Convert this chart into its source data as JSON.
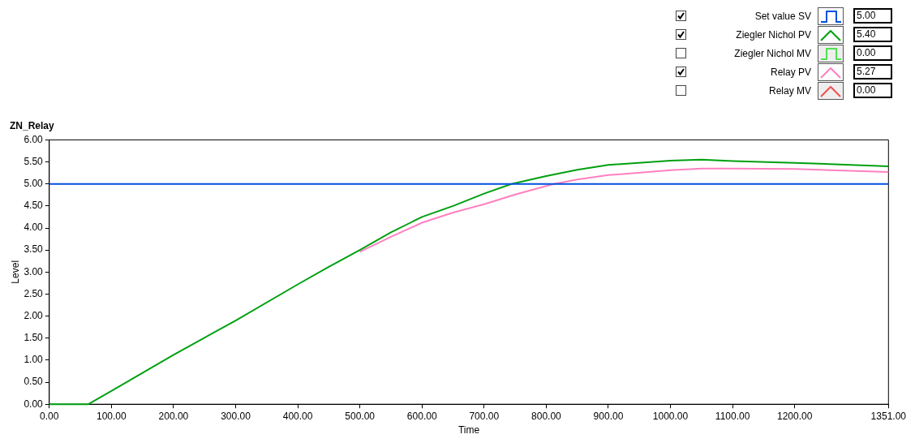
{
  "chart_data": {
    "type": "line",
    "title": "ZN_Relay",
    "xlabel": "Time",
    "ylabel": "Level",
    "legend": "top right",
    "grid": false,
    "marker": "none",
    "line_style": "solid",
    "xlim": [
      0,
      1351
    ],
    "ylim": [
      0,
      6
    ],
    "xticks": [
      {
        "value": 0,
        "label": "0.00"
      },
      {
        "value": 100,
        "label": "100.00"
      },
      {
        "value": 200,
        "label": "200.00"
      },
      {
        "value": 300,
        "label": "300.00"
      },
      {
        "value": 400,
        "label": "400.00"
      },
      {
        "value": 500,
        "label": "500.00"
      },
      {
        "value": 600,
        "label": "600.00"
      },
      {
        "value": 700,
        "label": "700.00"
      },
      {
        "value": 800,
        "label": "800.00"
      },
      {
        "value": 900,
        "label": "900.00"
      },
      {
        "value": 1000,
        "label": "1000.00"
      },
      {
        "value": 1100,
        "label": "1100.00"
      },
      {
        "value": 1200,
        "label": "1200.00"
      },
      {
        "value": 1351,
        "label": "1351.00"
      }
    ],
    "yticks": [
      {
        "value": 0,
        "label": "0.00"
      },
      {
        "value": 0.5,
        "label": "0.50"
      },
      {
        "value": 1,
        "label": "1.00"
      },
      {
        "value": 1.5,
        "label": "1.50"
      },
      {
        "value": 2,
        "label": "2.00"
      },
      {
        "value": 2.5,
        "label": "2.50"
      },
      {
        "value": 3,
        "label": "3.00"
      },
      {
        "value": 3.5,
        "label": "3.50"
      },
      {
        "value": 4,
        "label": "4.00"
      },
      {
        "value": 4.5,
        "label": "4.50"
      },
      {
        "value": 5,
        "label": "5.00"
      },
      {
        "value": 5.5,
        "label": "5.50"
      },
      {
        "value": 6,
        "label": "6.00"
      }
    ],
    "series": [
      {
        "name": "Set value SV",
        "type": "step",
        "color": "#0050e0",
        "x": [
          0,
          1351
        ],
        "values": [
          5,
          5
        ]
      },
      {
        "name": "Ziegler Nichol PV",
        "type": "line",
        "color": "#00a010",
        "x": [
          0,
          63,
          100,
          200,
          300,
          400,
          450,
          500,
          550,
          600,
          650,
          700,
          744,
          800,
          850,
          900,
          1000,
          1050,
          1100,
          1200,
          1351
        ],
        "values": [
          0,
          0,
          0.3,
          1.12,
          1.9,
          2.72,
          3.12,
          3.5,
          3.9,
          4.25,
          4.5,
          4.78,
          5,
          5.18,
          5.32,
          5.43,
          5.53,
          5.55,
          5.52,
          5.48,
          5.4
        ]
      },
      {
        "name": "Ziegler Nichol MV",
        "type": "step",
        "color": "#50e050"
      },
      {
        "name": "Relay PV",
        "type": "line",
        "color": "#ff80c0",
        "x": [
          500,
          550,
          600,
          650,
          700,
          750,
          812,
          850,
          900,
          1000,
          1050,
          1100,
          1200,
          1351
        ],
        "values": [
          3.46,
          3.8,
          4.12,
          4.35,
          4.54,
          4.76,
          5,
          5.1,
          5.2,
          5.31,
          5.35,
          5.35,
          5.34,
          5.27
        ]
      },
      {
        "name": "Relay MV",
        "type": "line",
        "color": "#f05050"
      }
    ],
    "annotations": [
      "5.00",
      "5.40",
      "0.00",
      "5.27",
      "0.00"
    ]
  }
}
